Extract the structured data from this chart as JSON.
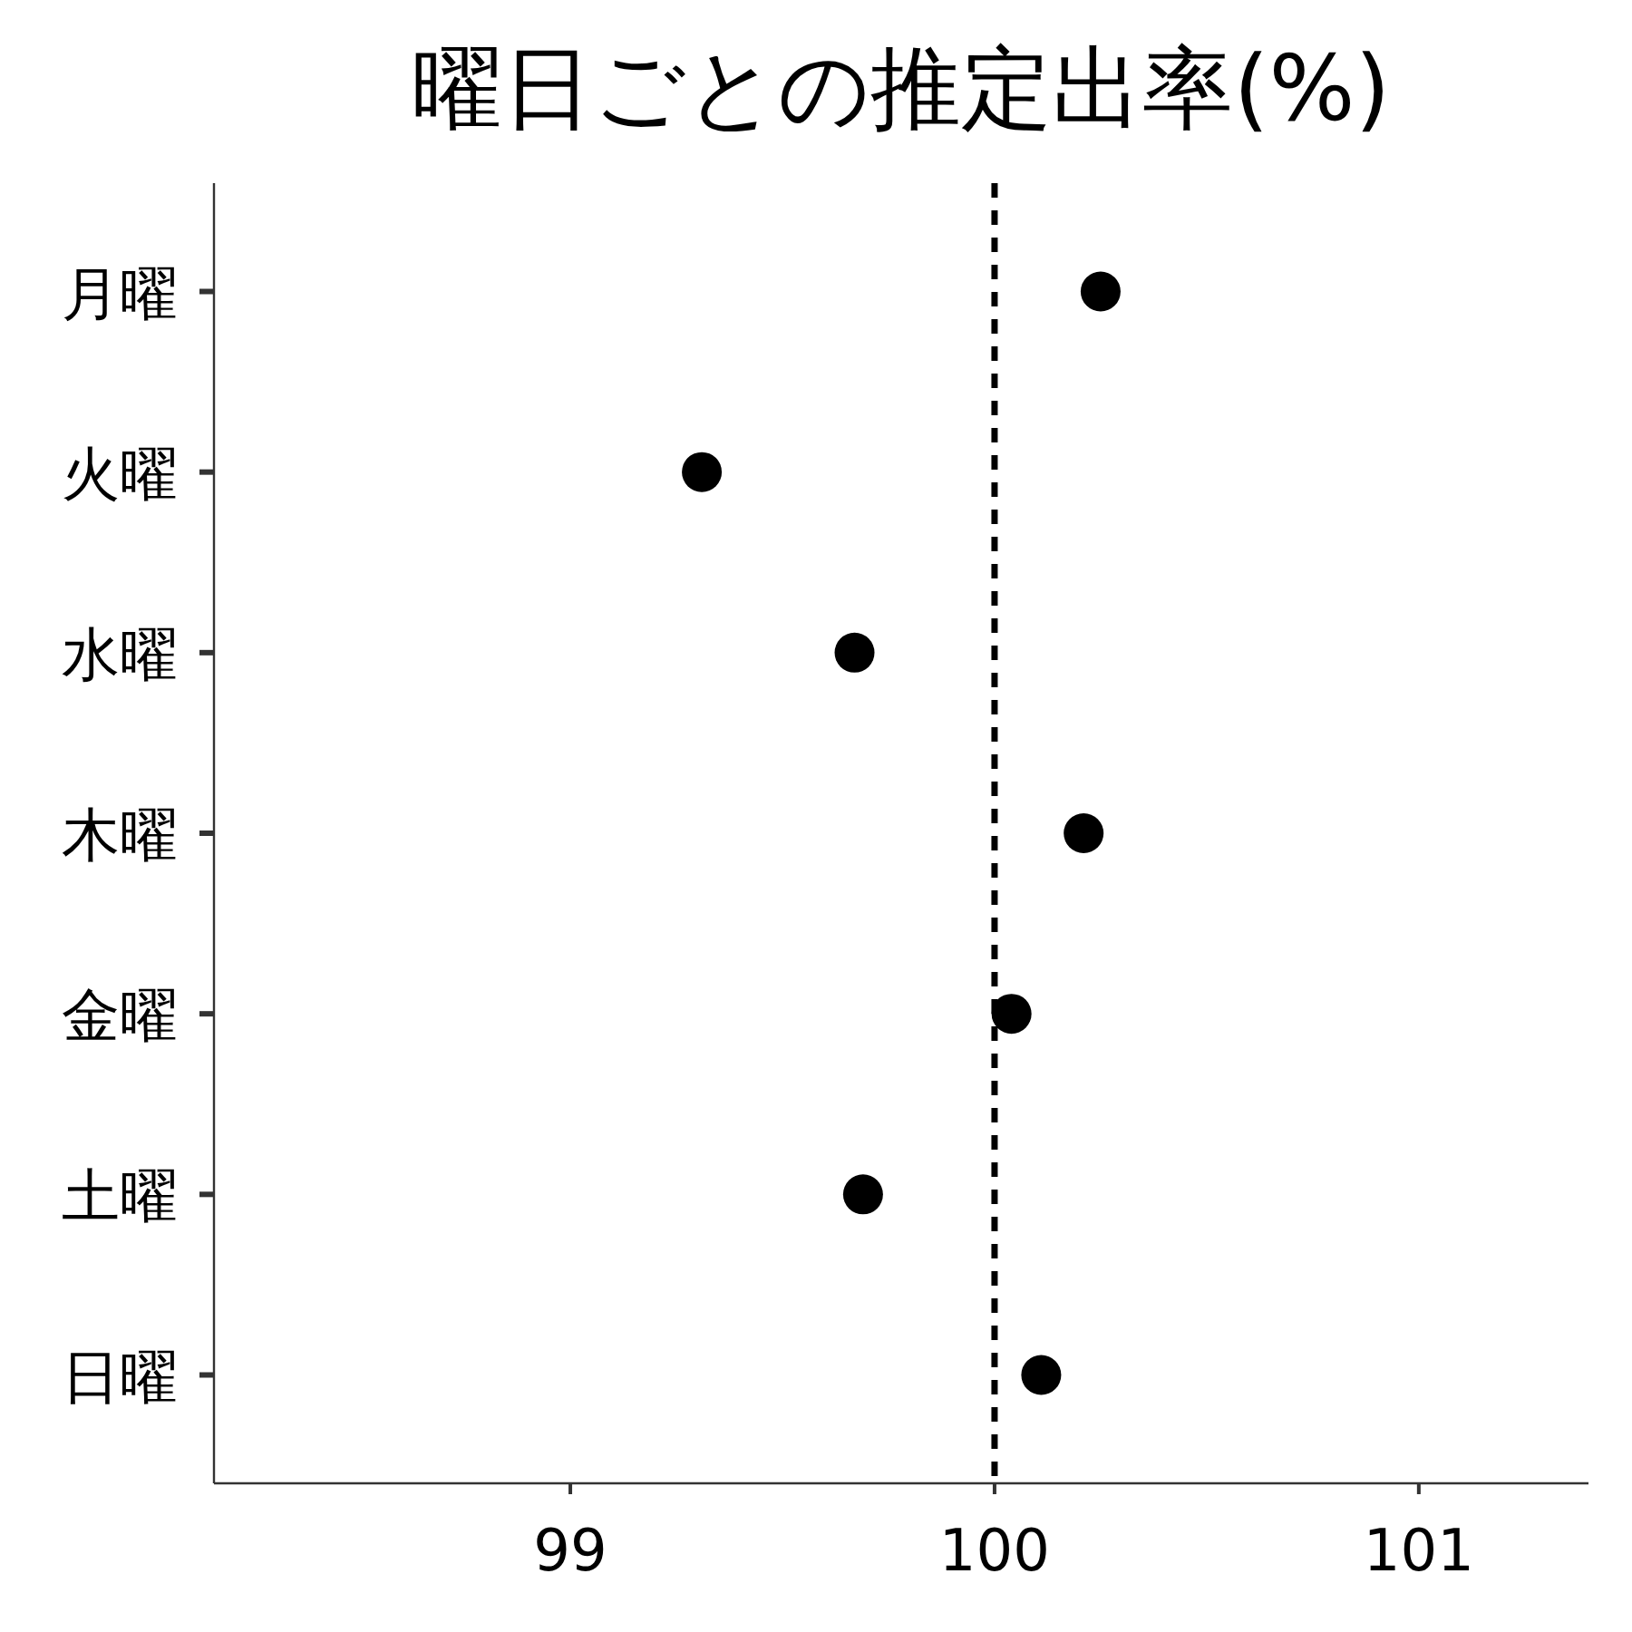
{
  "chart_data": {
    "type": "scatter",
    "orientation": "horizontal",
    "title": "曜日ごとの推定出率(%)",
    "categories": [
      "月曜",
      "火曜",
      "水曜",
      "木曜",
      "金曜",
      "土曜",
      "日曜"
    ],
    "values": [
      100.25,
      99.31,
      99.67,
      100.21,
      100.04,
      99.69,
      100.11
    ],
    "color": "#000000",
    "marker": "circle",
    "xlim": [
      98.16,
      101.4
    ],
    "xticks": [
      99,
      100,
      101
    ],
    "ref_lines": [
      {
        "axis": "x",
        "value": 100,
        "color": "#000000",
        "line_style": "dashed"
      }
    ],
    "grid": false
  }
}
